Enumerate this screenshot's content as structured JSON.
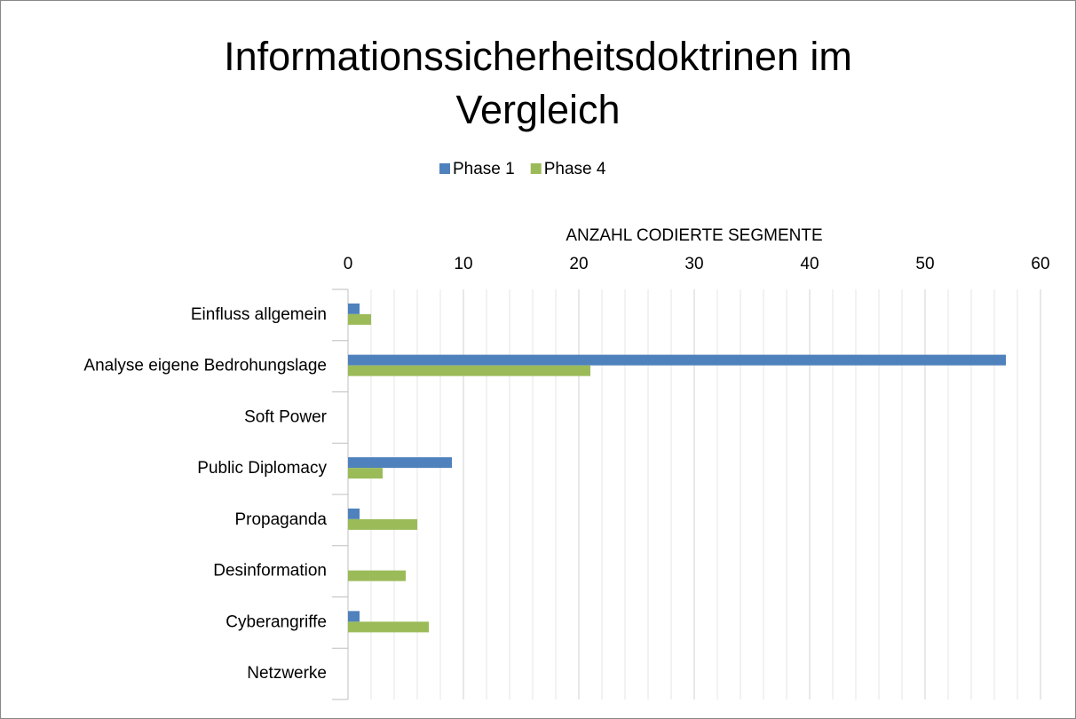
{
  "chart_data": {
    "type": "barh",
    "title": "Informationssicherheitsdoktrinen im Vergleich",
    "x_label": "ANZAHL CODIERTE SEGMENTE",
    "categories": [
      "Einfluss allgemein",
      "Analyse eigene Bedrohungslage",
      "Soft Power",
      "Public Diplomacy",
      "Propaganda",
      "Desinformation",
      "Cyberangriffe",
      "Netzwerke"
    ],
    "series": [
      {
        "name": "Phase 1",
        "color": "#4f81bd",
        "values": [
          1,
          57,
          0,
          9,
          1,
          0,
          1,
          0
        ]
      },
      {
        "name": "Phase 4",
        "color": "#9bbb59",
        "values": [
          2,
          21,
          0,
          3,
          6,
          5,
          7,
          0
        ]
      }
    ],
    "xlim": [
      0,
      60
    ],
    "xticks": [
      0,
      10,
      20,
      30,
      40,
      50,
      60
    ],
    "xminorticks": [
      2,
      4,
      6,
      8,
      12,
      14,
      16,
      18,
      22,
      24,
      26,
      28,
      32,
      34,
      36,
      38,
      42,
      44,
      46,
      48,
      52,
      54,
      56,
      58
    ],
    "grid": true,
    "legend": "top"
  }
}
